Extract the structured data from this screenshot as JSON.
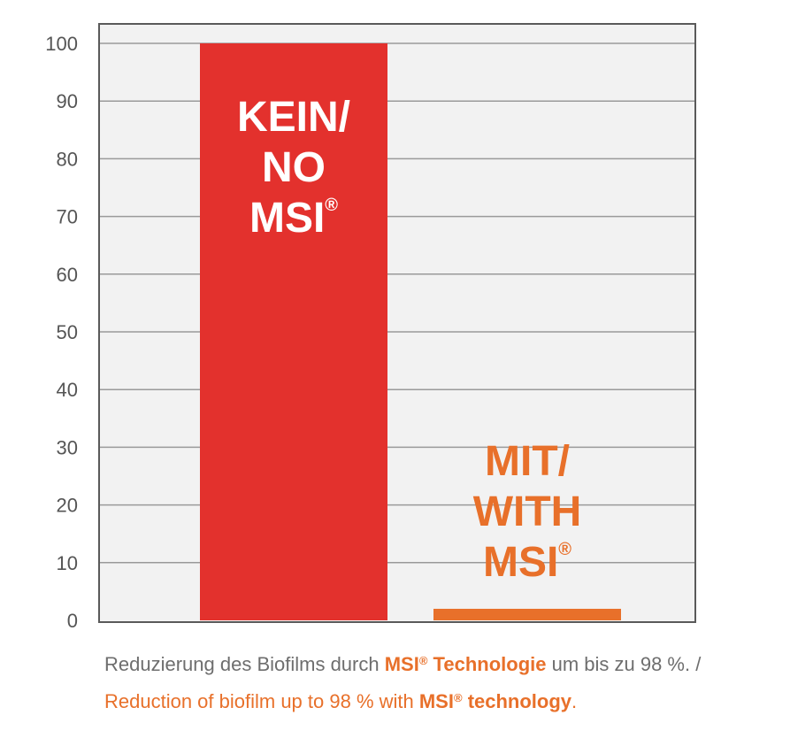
{
  "chart_data": {
    "type": "bar",
    "categories": [
      "KEIN/ NO MSI®",
      "MIT/ WITH MSI®"
    ],
    "values": [
      100,
      2
    ],
    "ylim": [
      0,
      100
    ],
    "yticks": [
      0,
      10,
      20,
      30,
      40,
      50,
      60,
      70,
      80,
      90,
      100
    ],
    "grid": true,
    "bar_labels": [
      {
        "lines": [
          "KEIN/",
          "NO",
          "MSI"
        ],
        "mark": "®",
        "color": "#ffffff",
        "placement": "inside-top"
      },
      {
        "lines": [
          "MIT/",
          "WITH",
          "MSI"
        ],
        "mark": "®",
        "color": "#e8702a",
        "placement": "above"
      }
    ],
    "colors": [
      "#e3312d",
      "#e8702a"
    ],
    "plot_background": "#f2f2f2",
    "grid_color": "#9a9a9a",
    "axis_color": "#5a5a5a"
  },
  "caption": {
    "de": {
      "pre": "Reduzierung des Biofilms durch ",
      "brand": "MSI",
      "mark": "®",
      "tech": " Technologie",
      "post": " um bis zu 98 %. /"
    },
    "en": {
      "pre": "Reduction of biofilm up to 98 % with ",
      "brand": "MSI",
      "mark": "®",
      "tech": " technology",
      "post": "."
    },
    "accent_color": "#e8702a",
    "text_color": "#6e6e6e"
  }
}
